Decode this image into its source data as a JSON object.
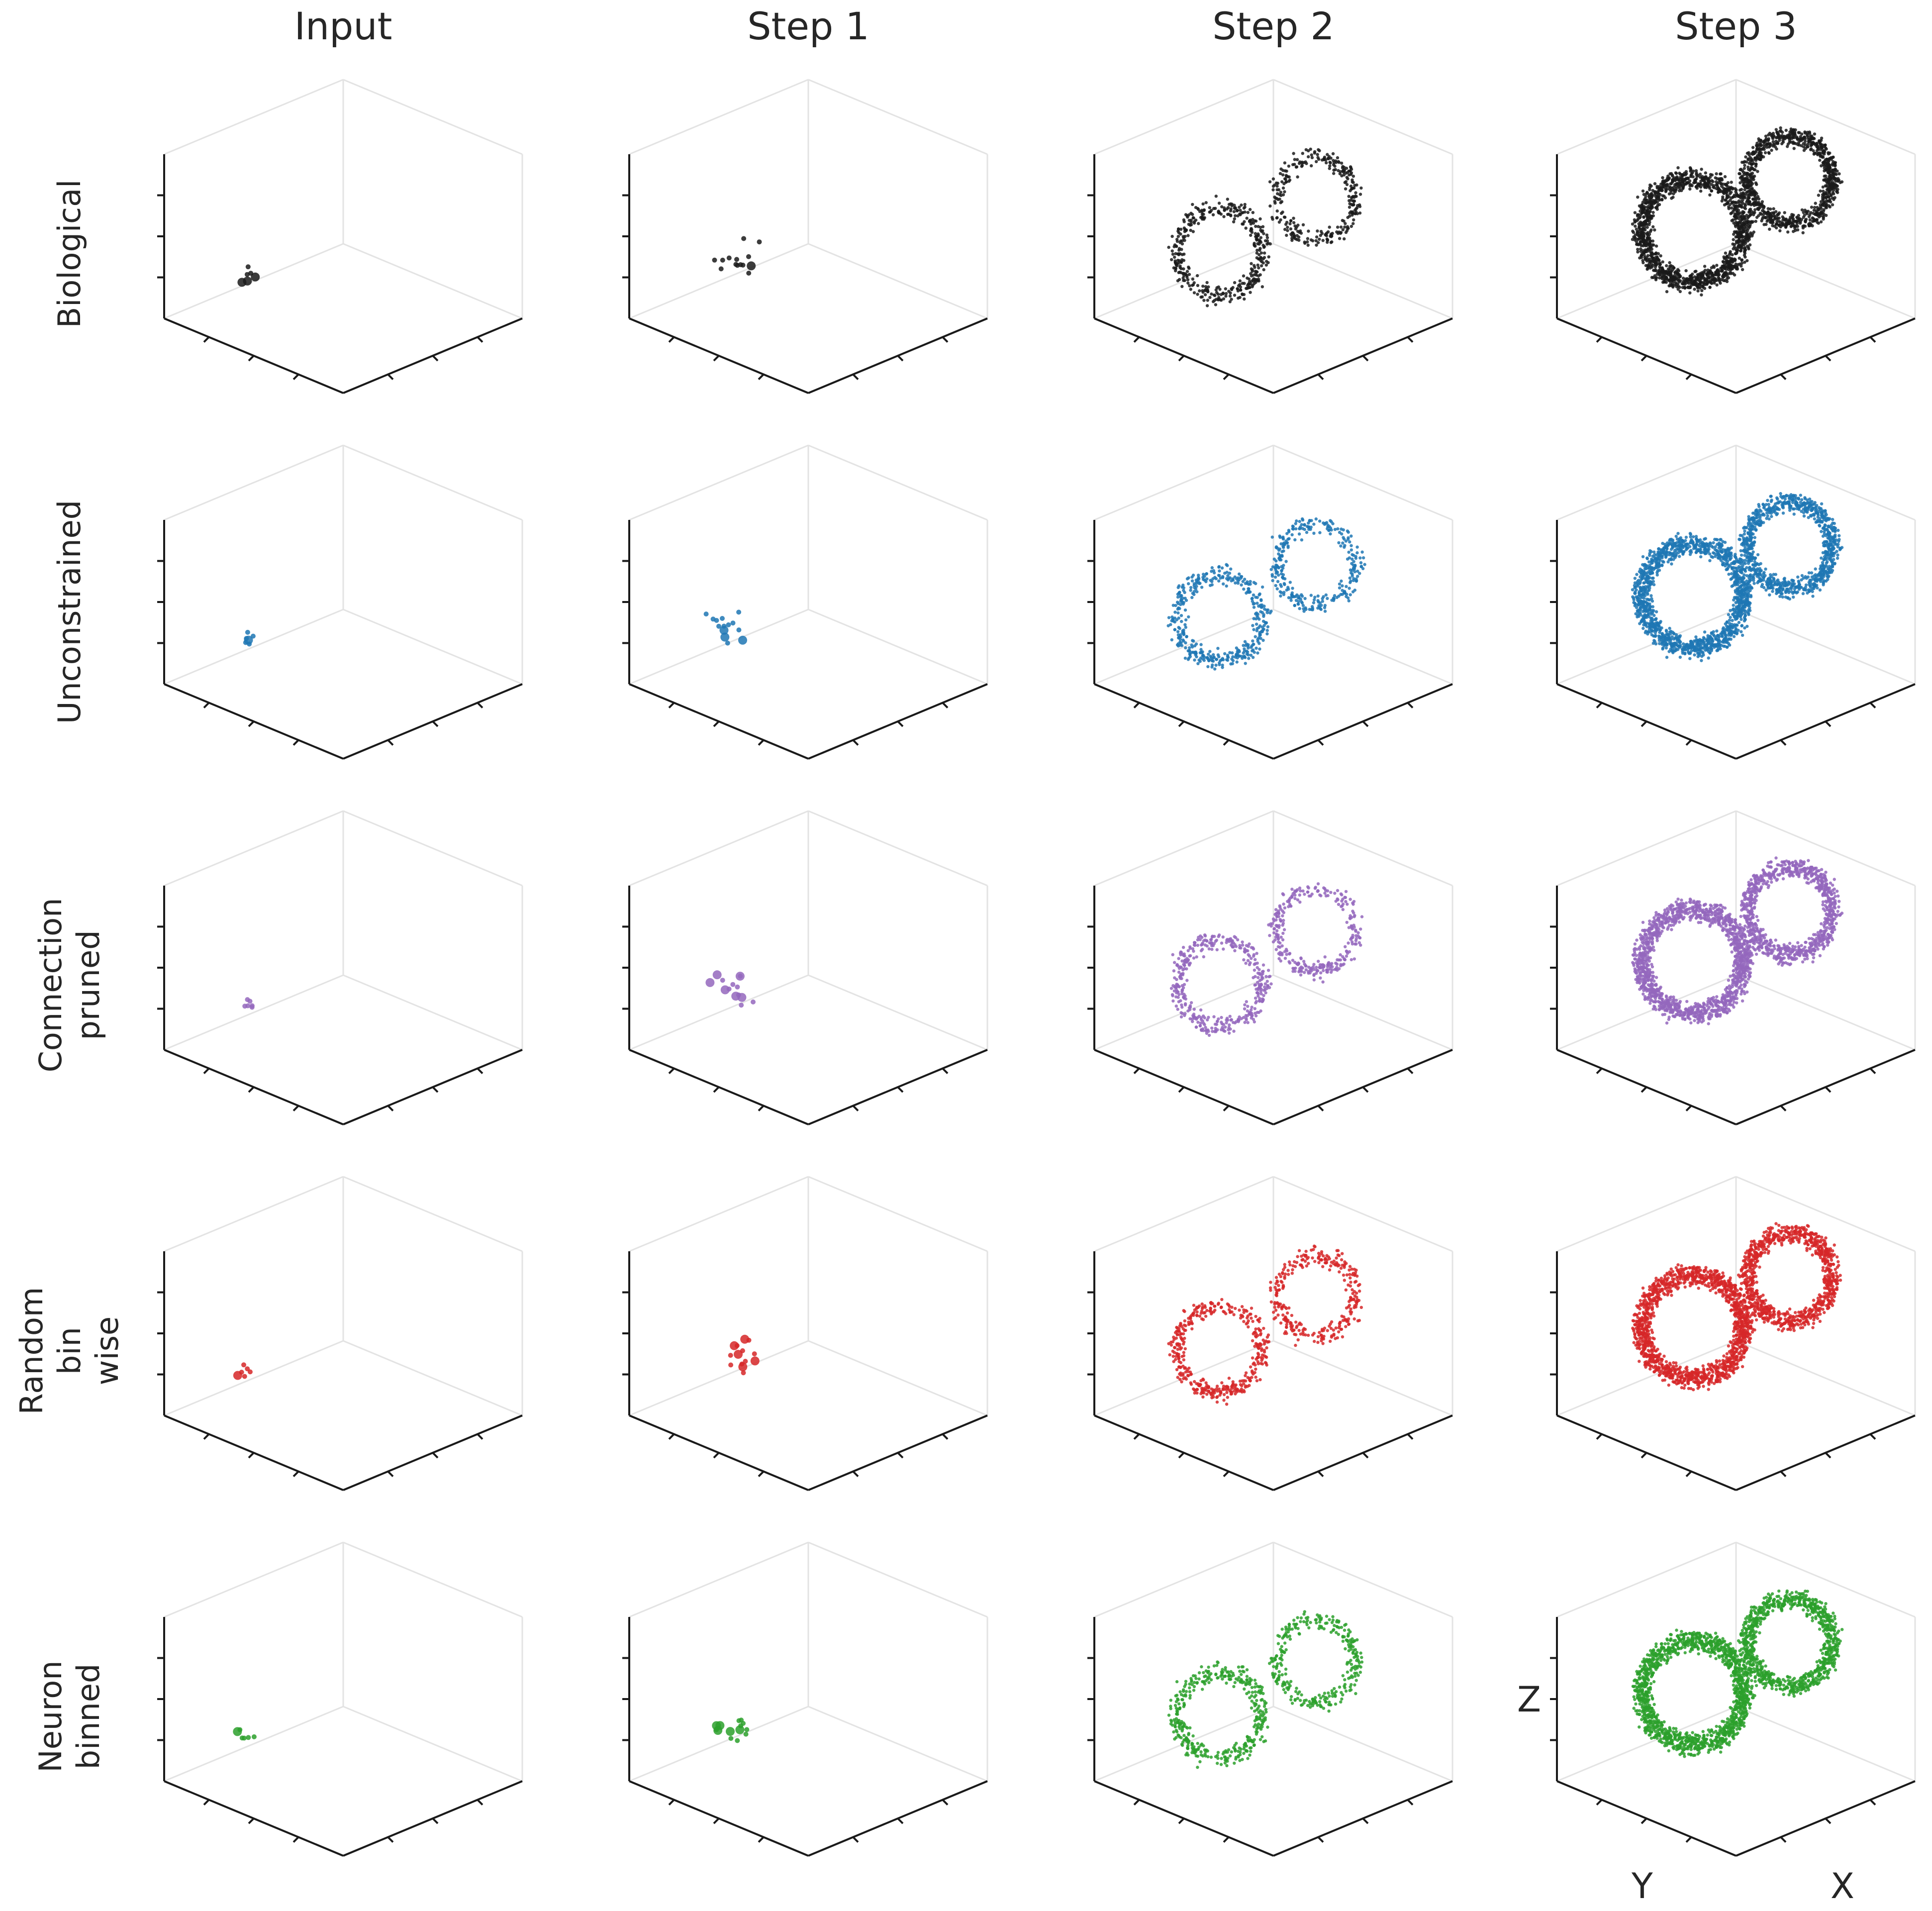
{
  "chart_data": {
    "type": "scatter",
    "columns": [
      "Input",
      "Step 1",
      "Step 2",
      "Step 3"
    ],
    "rows": [
      {
        "label_lines": [
          "Biological"
        ],
        "color": "#1a1a1a"
      },
      {
        "label_lines": [
          "Unconstrained"
        ],
        "color": "#1f77b4"
      },
      {
        "label_lines": [
          "Connection",
          "pruned"
        ],
        "color": "#9467bd"
      },
      {
        "label_lines": [
          "Random",
          "bin",
          "wise"
        ],
        "color": "#d62728"
      },
      {
        "label_lines": [
          "Neuron",
          "binned"
        ],
        "color": "#2ca02c"
      }
    ],
    "axis_labels": {
      "x": "X",
      "y": "Y",
      "z": "Z"
    },
    "projection": "3d",
    "grid": false,
    "panel_data": {
      "Input": {
        "clusters": [
          {
            "cx": 0.23,
            "cy": 0.62,
            "spread": 0.04,
            "count": 6
          }
        ]
      },
      "Step 1": {
        "clusters": [
          {
            "cx": 0.3,
            "cy": 0.58,
            "spread": 0.1,
            "count": 14
          }
        ]
      },
      "Step 2": {
        "clusters": [
          {
            "cx": 0.35,
            "cy": 0.55,
            "spread": 0.15,
            "count": 400
          },
          {
            "cx": 0.62,
            "cy": 0.38,
            "spread": 0.14,
            "count": 300
          }
        ]
      },
      "Step 3": {
        "clusters": [
          {
            "cx": 0.38,
            "cy": 0.48,
            "spread": 0.18,
            "count": 1400
          },
          {
            "cx": 0.65,
            "cy": 0.32,
            "spread": 0.15,
            "count": 900
          }
        ]
      }
    }
  }
}
